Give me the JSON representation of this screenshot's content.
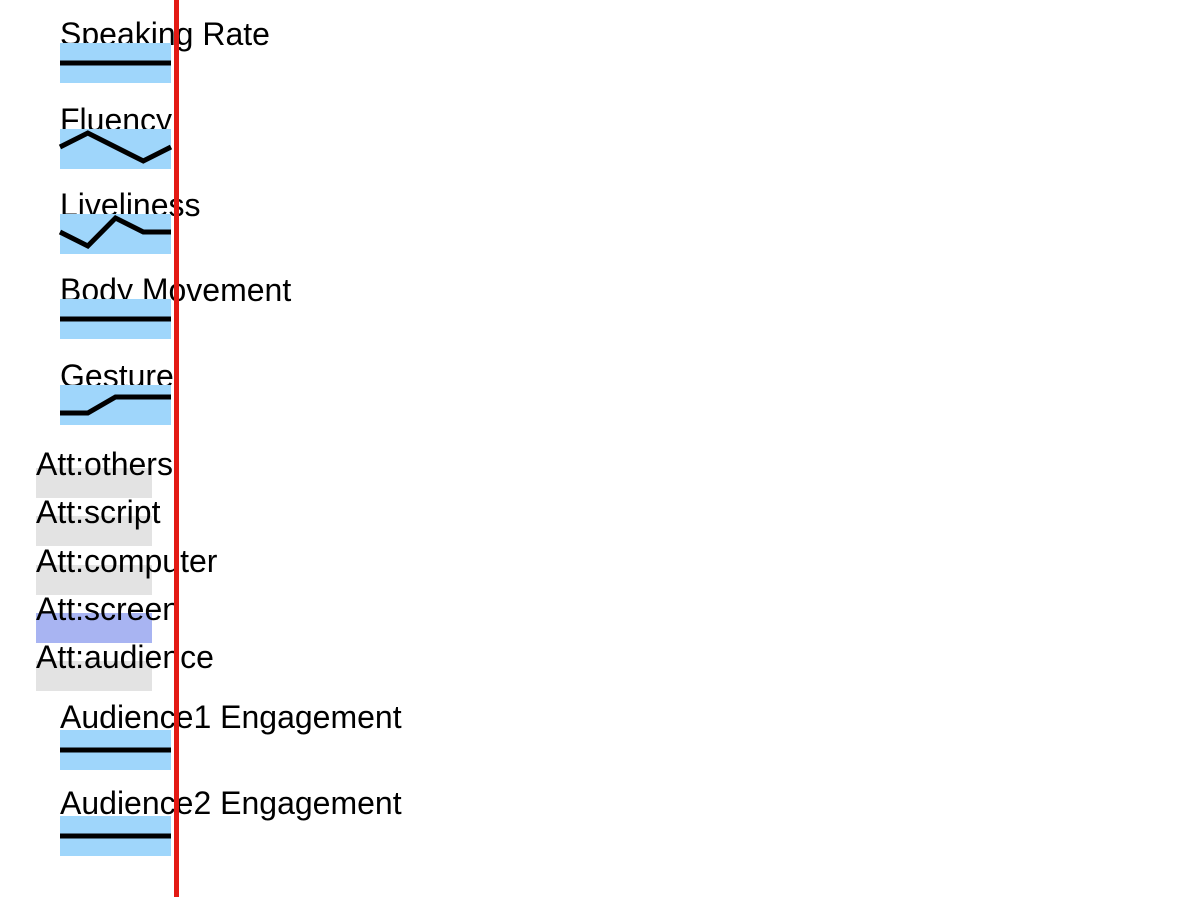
{
  "colors": {
    "track_fill": "#9fd6fb",
    "attention_fill": "#e3e3e3",
    "attention_active_fill": "#a8b4f2",
    "line": "#000000",
    "playhead": "#e31a14"
  },
  "metrics": [
    {
      "label": "Speaking Rate",
      "values": [
        0.5,
        0.5,
        0.5,
        0.5,
        0.5
      ]
    },
    {
      "label": "Fluency",
      "values": [
        0.55,
        0.9,
        0.55,
        0.2,
        0.55
      ]
    },
    {
      "label": "Liveliness",
      "values": [
        0.55,
        0.2,
        0.9,
        0.55,
        0.55
      ]
    },
    {
      "label": "Body Movement",
      "values": [
        0.5,
        0.5,
        0.5,
        0.5,
        0.5
      ]
    },
    {
      "label": "Gesture",
      "values": [
        0.3,
        0.3,
        0.7,
        0.7,
        0.7
      ]
    }
  ],
  "attention": [
    {
      "label": "Att:others",
      "active": false
    },
    {
      "label": "Att:script",
      "active": false
    },
    {
      "label": "Att:computer",
      "active": false
    },
    {
      "label": "Att:screen",
      "active": true
    },
    {
      "label": "Att:audience",
      "active": false
    }
  ],
  "engagement": [
    {
      "label": "Audience1 Engagement",
      "values": [
        0.5,
        0.5,
        0.5,
        0.5,
        0.5
      ]
    },
    {
      "label": "Audience2 Engagement",
      "values": [
        0.5,
        0.5,
        0.5,
        0.5,
        0.5
      ]
    }
  ]
}
